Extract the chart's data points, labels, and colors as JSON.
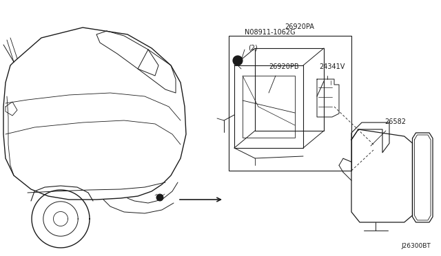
{
  "bg_color": "#ffffff",
  "line_color": "#1a1a1a",
  "text_color": "#1a1a1a",
  "diagram_code": "J26300BT",
  "label_N": "N08911-1062G",
  "label_N2": "(2)",
  "label_PA": "26920PA",
  "label_PB": "26920PB",
  "label_24341V": "24341V",
  "label_26582": "26582"
}
